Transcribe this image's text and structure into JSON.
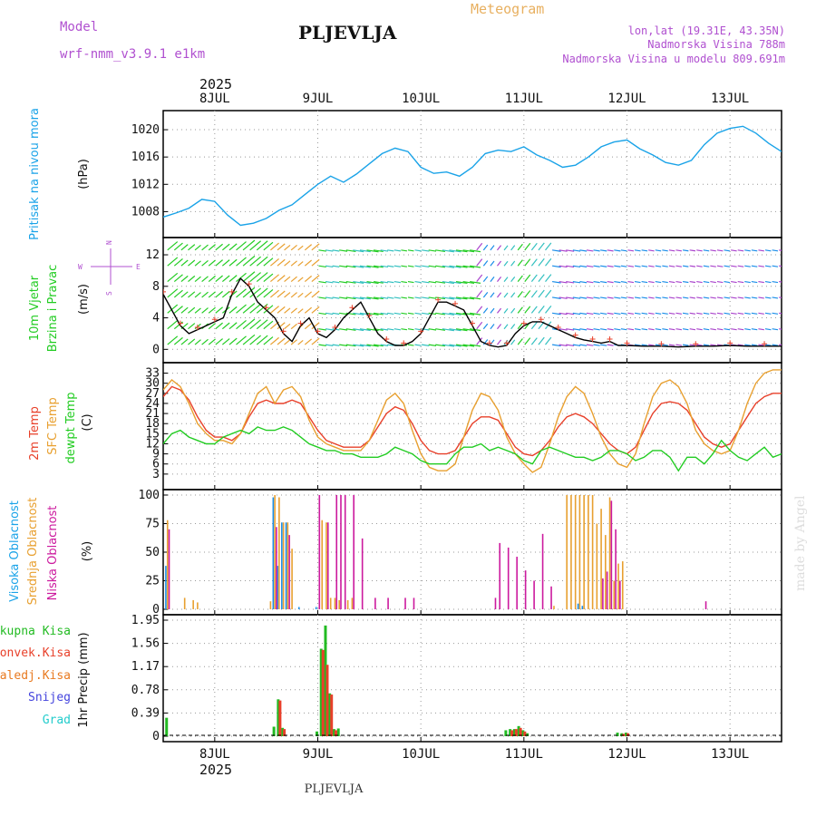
{
  "header": {
    "model_label": "Model",
    "model_name": "wrf-nmm_v3.9.1 e1km",
    "station": "PLJEVLJA",
    "title": "Meteogram",
    "coords": "lon,lat (19.31E, 43.35N)",
    "elevation": "Nadmorska Visina 788m",
    "model_elevation": "Nadmorska Visina u modelu 809.691m",
    "footer_station": "PLJEVLJA",
    "credit": "made by Angel"
  },
  "time_axis": {
    "year": "2025",
    "days": [
      "8JUL",
      "9JUL",
      "10JUL",
      "11JUL",
      "12JUL",
      "13JUL"
    ],
    "start_hour": -12,
    "end_hour": 132
  },
  "colors": {
    "pressure": "#1aa3e8",
    "t2m": "#e8402a",
    "sfc": "#e8a030",
    "dewpt": "#22cc22",
    "high_cloud": "#1a8ee8",
    "mid_cloud": "#e8a030",
    "low_cloud": "#cc1a9e",
    "total_precip": "#22bb22",
    "conv_precip": "#e8402a",
    "freezing": "#e87a20",
    "snow": "#4444dd",
    "hail": "#22cccc",
    "wind_dir": "#aa44cc"
  },
  "chart_data": [
    {
      "type": "line",
      "panel": "pressure",
      "ylabel": [
        "Pritisak na nivou mora",
        "(hPa)"
      ],
      "ylim": [
        1005,
        1022
      ],
      "yticks": [
        1008,
        1012,
        1016,
        1020
      ],
      "series": [
        {
          "x": [
            -12,
            -9,
            -6,
            -3,
            0,
            3,
            6,
            9,
            12,
            15,
            18,
            21,
            24,
            27,
            30,
            33,
            36,
            39,
            42,
            45,
            48,
            51,
            54,
            57,
            60,
            63,
            66,
            69,
            72,
            75,
            78,
            81,
            84,
            87,
            90,
            93,
            96,
            99,
            102,
            105,
            108,
            111,
            114,
            117,
            120,
            123,
            126,
            129,
            132
          ],
          "values": [
            1007.2,
            1007.8,
            1008.5,
            1009.8,
            1009.5,
            1007.5,
            1006.0,
            1006.3,
            1007.0,
            1008.2,
            1009.0,
            1010.5,
            1012.0,
            1013.2,
            1012.3,
            1013.5,
            1015.0,
            1016.5,
            1017.3,
            1016.8,
            1014.5,
            1013.6,
            1013.8,
            1013.2,
            1014.5,
            1016.5,
            1017.0,
            1016.8,
            1017.5,
            1016.3,
            1015.5,
            1014.5,
            1014.8,
            1016.0,
            1017.5,
            1018.2,
            1018.5,
            1017.2,
            1016.3,
            1015.2,
            1014.8,
            1015.5,
            1017.8,
            1019.5,
            1020.2,
            1020.5,
            1019.5,
            1018.0,
            1016.8
          ]
        }
      ]
    },
    {
      "type": "line",
      "panel": "wind",
      "ylabel": [
        "10m Vjetar",
        "Brzina i Pravac",
        "(m/s)"
      ],
      "direction_key": [
        "W",
        "E",
        "N",
        "S"
      ],
      "ylim": [
        -1,
        13.5
      ],
      "yticks": [
        0,
        4,
        8,
        12
      ],
      "series": [
        {
          "name": "speed",
          "x": [
            -12,
            -10,
            -8,
            -6,
            -4,
            -2,
            0,
            2,
            4,
            6,
            8,
            10,
            12,
            14,
            16,
            18,
            20,
            22,
            24,
            26,
            28,
            30,
            32,
            34,
            36,
            38,
            40,
            42,
            44,
            46,
            48,
            50,
            52,
            54,
            56,
            58,
            60,
            62,
            64,
            66,
            68,
            70,
            72,
            74,
            76,
            78,
            80,
            82,
            84,
            86,
            88,
            90,
            92,
            94,
            96,
            100,
            104,
            108,
            112,
            116,
            120,
            124,
            128,
            132
          ],
          "values": [
            7,
            5,
            3,
            2,
            2.5,
            3,
            3.5,
            4,
            7,
            9,
            8,
            6,
            5,
            4,
            2,
            1,
            3,
            4,
            2,
            1.5,
            2.5,
            4,
            5,
            6,
            4,
            2,
            1,
            0.5,
            0.5,
            1,
            2,
            4,
            6,
            6,
            5.5,
            5,
            3,
            1,
            0.5,
            0.3,
            0.5,
            2,
            3,
            3.5,
            3.5,
            3,
            2.5,
            2,
            1.5,
            1.2,
            1,
            0.8,
            1,
            0.5,
            0.5,
            0.4,
            0.4,
            0.3,
            0.4,
            0.4,
            0.5,
            0.4,
            0.4,
            0.4
          ]
        }
      ]
    },
    {
      "type": "line",
      "panel": "temperature",
      "ylabel": [
        "2m Temp",
        "SFC Temp",
        "dewpt Temp",
        "(C)"
      ],
      "ylim": [
        0,
        34.5
      ],
      "yticks": [
        3,
        6,
        9,
        12,
        15,
        18,
        21,
        24,
        27,
        30,
        33
      ],
      "series": [
        {
          "name": "2m Temp",
          "x": [
            -12,
            -10,
            -8,
            -6,
            -4,
            -2,
            0,
            2,
            4,
            6,
            8,
            10,
            12,
            14,
            16,
            18,
            20,
            22,
            24,
            26,
            28,
            30,
            32,
            34,
            36,
            38,
            40,
            42,
            44,
            46,
            48,
            50,
            52,
            54,
            56,
            58,
            60,
            62,
            64,
            66,
            68,
            70,
            72,
            74,
            76,
            78,
            80,
            82,
            84,
            86,
            88,
            90,
            92,
            94,
            96,
            98,
            100,
            102,
            104,
            106,
            108,
            110,
            112,
            114,
            116,
            118,
            120,
            122,
            124,
            126,
            128,
            130,
            132
          ],
          "values": [
            26,
            29,
            28,
            25,
            20,
            16,
            14,
            14,
            13,
            15,
            20,
            24,
            25,
            24,
            24,
            25,
            24,
            20,
            16,
            13,
            12,
            11,
            11,
            11,
            13,
            17,
            21,
            23,
            22,
            18,
            13,
            10,
            9,
            9,
            10,
            14,
            18,
            20,
            20,
            19,
            15,
            11,
            9,
            8.5,
            10,
            13,
            17,
            20,
            21,
            20,
            18,
            15,
            12,
            10,
            9,
            11,
            16,
            21,
            24,
            24.5,
            24,
            22,
            18,
            14,
            12,
            11,
            12,
            16,
            20,
            24,
            26,
            27,
            27
          ]
        },
        {
          "name": "SFC Temp",
          "x": [
            -12,
            -10,
            -8,
            -6,
            -4,
            -2,
            0,
            2,
            4,
            6,
            8,
            10,
            12,
            14,
            16,
            18,
            20,
            22,
            24,
            26,
            28,
            30,
            32,
            34,
            36,
            38,
            40,
            42,
            44,
            46,
            48,
            50,
            52,
            54,
            56,
            58,
            60,
            62,
            64,
            66,
            68,
            70,
            72,
            74,
            76,
            78,
            80,
            82,
            84,
            86,
            88,
            90,
            92,
            94,
            96,
            98,
            100,
            102,
            104,
            106,
            108,
            110,
            112,
            114,
            116,
            118,
            120,
            122,
            124,
            126,
            128,
            130,
            132
          ],
          "values": [
            28,
            31,
            29,
            24,
            18,
            15,
            13,
            13,
            12,
            15,
            21,
            27,
            29,
            24,
            28,
            29,
            26,
            19,
            14,
            12,
            11,
            10,
            10,
            10,
            13,
            19,
            25,
            27,
            24,
            16,
            9,
            5,
            4,
            4,
            6,
            14,
            22,
            27,
            26,
            22,
            14,
            9,
            6,
            3.5,
            5,
            12,
            20,
            26,
            29,
            27,
            21,
            14,
            9,
            6,
            5,
            9,
            18,
            26,
            30,
            31,
            29,
            24,
            16,
            12,
            10,
            9,
            10,
            16,
            24,
            30,
            33,
            34,
            34
          ]
        },
        {
          "name": "dewpt Temp",
          "x": [
            -12,
            -10,
            -8,
            -6,
            -4,
            -2,
            0,
            2,
            4,
            6,
            8,
            10,
            12,
            14,
            16,
            18,
            20,
            22,
            24,
            26,
            28,
            30,
            32,
            34,
            36,
            38,
            40,
            42,
            44,
            46,
            48,
            50,
            52,
            54,
            56,
            58,
            60,
            62,
            64,
            66,
            68,
            70,
            72,
            74,
            76,
            78,
            80,
            82,
            84,
            86,
            88,
            90,
            92,
            94,
            96,
            98,
            100,
            102,
            104,
            106,
            108,
            110,
            112,
            114,
            116,
            118,
            120,
            122,
            124,
            126,
            128,
            130,
            132
          ],
          "values": [
            12,
            15,
            16,
            14,
            13,
            12,
            12,
            14,
            15,
            16,
            15,
            17,
            16,
            16,
            17,
            16,
            14,
            12,
            11,
            10,
            10,
            9,
            9,
            8,
            8,
            8,
            9,
            11,
            10,
            9,
            7,
            6,
            6,
            6,
            9,
            11,
            11,
            12,
            10,
            11,
            10,
            9,
            7,
            6,
            10,
            11,
            10,
            9,
            8,
            8,
            7,
            8,
            10,
            10,
            9,
            7,
            8,
            10,
            10,
            8,
            4,
            8,
            8,
            6,
            9,
            13,
            10,
            8,
            7,
            9,
            11,
            8,
            9
          ]
        }
      ]
    },
    {
      "type": "bar",
      "panel": "clouds",
      "ylabel": [
        "Visoka Oblacnost",
        "Srednja Oblacnost",
        "Niska Oblacnost",
        "(%)"
      ],
      "ylim": [
        0,
        100
      ],
      "yticks": [
        0,
        25,
        50,
        75,
        100
      ],
      "series": [
        {
          "name": "Visoka Oblacnost",
          "x": [
            -11,
            14,
            15,
            16,
            17,
            20,
            24,
            85,
            86
          ],
          "values": [
            38,
            98,
            38,
            76,
            76,
            2,
            2,
            5,
            3
          ]
        },
        {
          "name": "Srednja Oblacnost",
          "x": [
            -11,
            -7,
            -5,
            -4,
            13,
            14,
            15,
            16,
            17,
            18,
            25,
            26,
            27,
            28,
            29,
            31,
            32,
            79,
            82,
            83,
            84,
            85,
            86,
            87,
            88,
            89,
            90,
            91,
            92,
            93,
            94,
            95
          ],
          "values": [
            78,
            10,
            8,
            6,
            7,
            100,
            98,
            76,
            76,
            53,
            78,
            76,
            10,
            10,
            8,
            8,
            10,
            3,
            100,
            100,
            100,
            100,
            100,
            100,
            100,
            75,
            88,
            65,
            98,
            25,
            40,
            42
          ]
        },
        {
          "name": "Niska Oblacnost",
          "x": [
            -11,
            14,
            17,
            24,
            26,
            28,
            29,
            30,
            32,
            34,
            37,
            40,
            44,
            46,
            65,
            66,
            68,
            70,
            72,
            74,
            76,
            78,
            90,
            91,
            92,
            93,
            94,
            114
          ],
          "values": [
            70,
            72,
            65,
            100,
            76,
            100,
            100,
            100,
            100,
            62,
            10,
            10,
            10,
            10,
            10,
            58,
            54,
            46,
            34,
            25,
            66,
            20,
            27,
            33,
            95,
            70,
            25,
            7
          ]
        }
      ]
    },
    {
      "type": "bar",
      "panel": "precipitation",
      "ylabel": [
        "1hr Precip (mm)"
      ],
      "legend": [
        "Ukupna Kisa",
        "Konvek.Kisa",
        "Zaledj.Kisa",
        "Snijeg",
        "Grad"
      ],
      "ylim": [
        0,
        1.95
      ],
      "yticks": [
        0,
        0.39,
        0.78,
        1.17,
        1.56,
        1.95
      ],
      "series": [
        {
          "name": "Ukupna Kisa",
          "x": [
            -11,
            14,
            15,
            16,
            24,
            25,
            26,
            27,
            28,
            29,
            68,
            69,
            70,
            71,
            72,
            73,
            94,
            95,
            96
          ],
          "values": [
            0.31,
            0.16,
            0.62,
            0.14,
            0.08,
            1.47,
            1.86,
            0.72,
            0.12,
            0.13,
            0.1,
            0.12,
            0.12,
            0.17,
            0.1,
            0.05,
            0.06,
            0.05,
            0.06
          ]
        },
        {
          "name": "Konvek.Kisa",
          "x": [
            15,
            16,
            25,
            26,
            27,
            28,
            69,
            70,
            71,
            72,
            95,
            96
          ],
          "values": [
            0.6,
            0.12,
            1.45,
            1.2,
            0.7,
            0.1,
            0.1,
            0.12,
            0.14,
            0.08,
            0.04,
            0.05
          ]
        }
      ]
    }
  ]
}
